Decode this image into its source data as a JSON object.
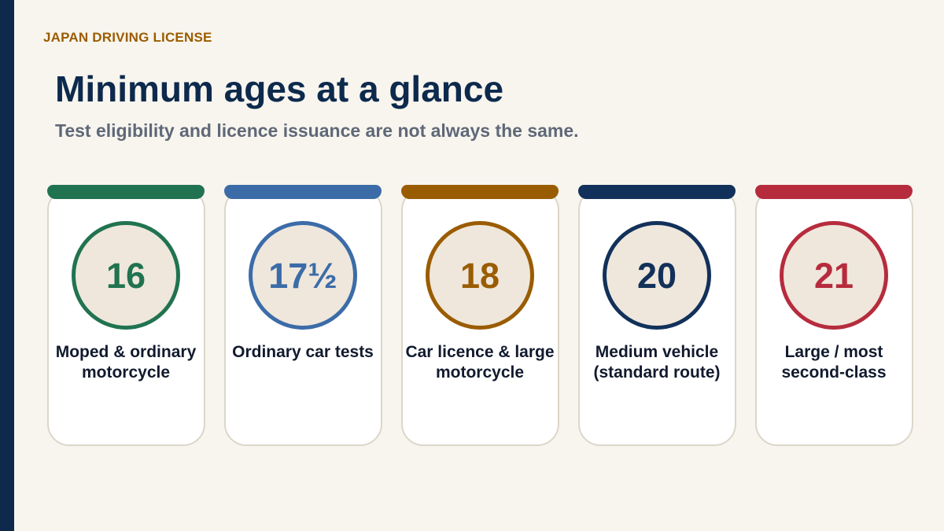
{
  "header": {
    "eyebrow": "JAPAN DRIVING LICENSE",
    "title": "Minimum ages at a glance",
    "subtitle": "Test eligibility and licence issuance are not always the same."
  },
  "colors": {
    "sidebar": "#0d2a4d",
    "background": "#f8f5ee",
    "eyebrow": "#9a5c00",
    "title": "#0d2a4d",
    "subtitle": "#5f6878",
    "ring_fill": "#efe7dc"
  },
  "cards": [
    {
      "age": "16",
      "label": "Moped & ordinary motorcycle",
      "color": "#217350"
    },
    {
      "age": "17½",
      "label": "Ordinary car tests",
      "color": "#3c6ca8"
    },
    {
      "age": "18",
      "label": "Car licence & large motorcycle",
      "color": "#9a5c00"
    },
    {
      "age": "20",
      "label": "Medium vehicle (standard route)",
      "color": "#12315a"
    },
    {
      "age": "21",
      "label": "Large / most second-class",
      "color": "#b62c3d"
    }
  ]
}
